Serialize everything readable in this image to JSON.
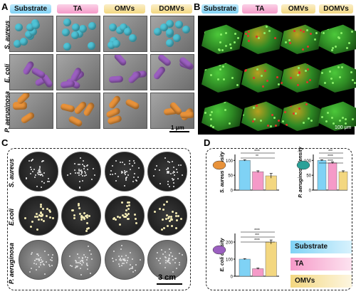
{
  "panels": {
    "a": "A",
    "b": "B",
    "c": "C",
    "d": "D"
  },
  "columns": [
    "Substrate",
    "TA",
    "OMVs",
    "DOMVs"
  ],
  "species_rows": [
    "S. aureus",
    "E. coli",
    "P. aeruginosa"
  ],
  "plate_rows": [
    "S. aureus",
    "E.coli",
    "P. aeruginosa"
  ],
  "scale_sem": "1 μm",
  "scale_biofilm": "100 μm",
  "scale_plate": "3 cm",
  "legend": [
    "Substrate",
    "TA",
    "OMVs"
  ],
  "colors": {
    "substrate": "#7fd2f5",
    "ta": "#f59ac8",
    "omvs": "#f3d780"
  },
  "chart_data": [
    {
      "type": "bar",
      "ylabel": "S. aureus density",
      "categories": [
        "Substrate",
        "TA",
        "OMVs"
      ],
      "values": [
        100,
        62,
        48
      ],
      "errors": [
        2,
        3,
        8
      ],
      "ylim": [
        0,
        120
      ],
      "yticks": [
        0,
        50,
        100
      ],
      "significance": [
        "****",
        "**"
      ]
    },
    {
      "type": "bar",
      "ylabel": "P. aeruginosa density",
      "categories": [
        "Substrate",
        "TA",
        "OMVs"
      ],
      "values": [
        100,
        92,
        62
      ],
      "errors": [
        2,
        3,
        3
      ],
      "ylim": [
        0,
        120
      ],
      "yticks": [
        0,
        50,
        100
      ],
      "significance": [
        "***",
        "****",
        "****"
      ]
    },
    {
      "type": "bar",
      "ylabel": "E. coli density",
      "categories": [
        "Substrate",
        "TA",
        "OMVs"
      ],
      "values": [
        100,
        44,
        200
      ],
      "errors": [
        3,
        4,
        12
      ],
      "ylim": [
        0,
        250
      ],
      "yticks": [
        0,
        100,
        200
      ],
      "significance": [
        "****",
        "***",
        "****"
      ]
    }
  ]
}
